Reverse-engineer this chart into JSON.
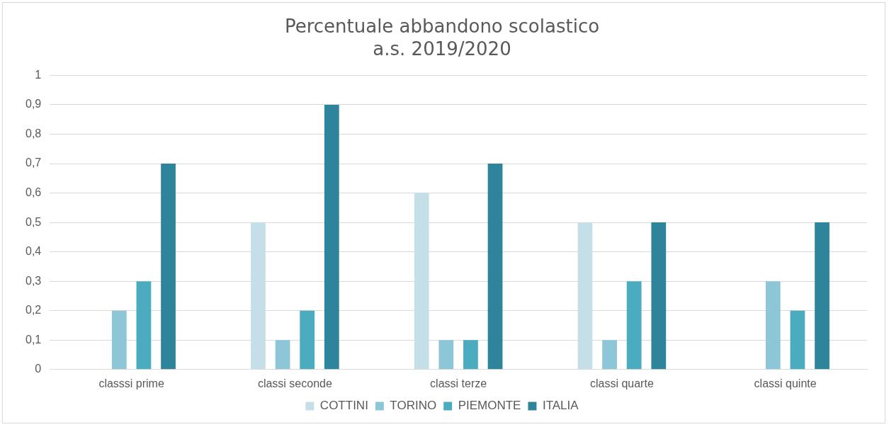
{
  "chart_data": {
    "type": "bar",
    "title": "Percentuale abbandono scolastico\na.s. 2019/2020",
    "categories": [
      "classsi prime",
      "classi seconde",
      "classi terze",
      "classi quarte",
      "classi quinte"
    ],
    "series": [
      {
        "name": "COTTINI",
        "color": "#c5dfe8",
        "values": [
          0,
          0.5,
          0.6,
          0.5,
          0
        ]
      },
      {
        "name": "TORINO",
        "color": "#8dc6d6",
        "values": [
          0.2,
          0.1,
          0.1,
          0.1,
          0.3
        ]
      },
      {
        "name": "PIEMONTE",
        "color": "#4bacc0",
        "values": [
          0.3,
          0.2,
          0.1,
          0.3,
          0.2
        ]
      },
      {
        "name": "ITALIA",
        "color": "#2e849a",
        "values": [
          0.7,
          0.9,
          0.7,
          0.5,
          0.5
        ]
      }
    ],
    "ylim": [
      0,
      1
    ],
    "yticks": [
      0,
      {
        "value": 0.1,
        "label": "0,1"
      },
      {
        "value": 0.2,
        "label": "0,2"
      },
      {
        "value": 0.3,
        "label": "0,3"
      },
      {
        "value": 0.4,
        "label": "0,4"
      },
      {
        "value": 0.5,
        "label": "0,5"
      },
      {
        "value": 0.6,
        "label": "0,6"
      },
      {
        "value": 0.7,
        "label": "0,7"
      },
      {
        "value": 0.8,
        "label": "0,8"
      },
      {
        "value": 0.9,
        "label": "0,9"
      },
      1
    ],
    "grid": "y",
    "legend": "bottom"
  }
}
